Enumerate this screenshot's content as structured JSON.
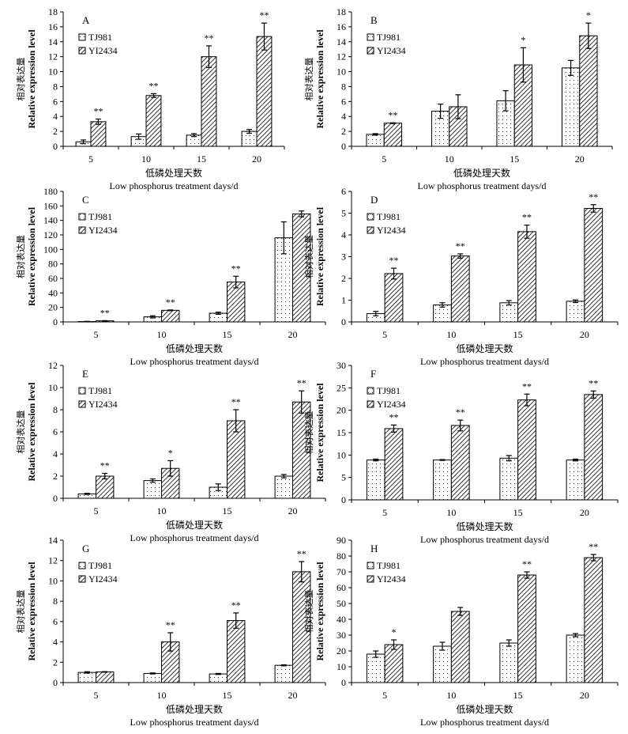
{
  "labels": {
    "ylabel_en": "Relative expression level",
    "ylabel_cn": "相对表达量",
    "xlabel_cn": "低磷处理天数",
    "xlabel_en": "Low phosphorus treatment days/d"
  },
  "legend": [
    "TJ981",
    "YI2434"
  ],
  "chart_data": [
    {
      "type": "bar",
      "panel": "A",
      "categories": [
        "5",
        "10",
        "15",
        "20"
      ],
      "ylim": [
        0,
        18
      ],
      "yticks": [
        0,
        2,
        4,
        6,
        8,
        10,
        12,
        14,
        16,
        18
      ],
      "legend_position": "top-left",
      "series": [
        {
          "name": "TJ981",
          "values": [
            0.6,
            1.3,
            1.5,
            2.0
          ],
          "errors": [
            0.25,
            0.35,
            0.2,
            0.25
          ]
        },
        {
          "name": "YI2434",
          "values": [
            3.3,
            6.8,
            12.0,
            14.7
          ],
          "errors": [
            0.35,
            0.25,
            1.45,
            1.8
          ]
        }
      ],
      "annotations": [
        "**",
        "**",
        "**",
        "**"
      ]
    },
    {
      "type": "bar",
      "panel": "B",
      "categories": [
        "5",
        "10",
        "15",
        "20"
      ],
      "ylim": [
        0,
        18
      ],
      "yticks": [
        0,
        2,
        4,
        6,
        8,
        10,
        12,
        14,
        16,
        18
      ],
      "legend_position": "top-left",
      "series": [
        {
          "name": "TJ981",
          "values": [
            1.6,
            4.7,
            6.1,
            10.5
          ],
          "errors": [
            0.1,
            0.95,
            1.35,
            1.0
          ]
        },
        {
          "name": "YI2434",
          "values": [
            3.1,
            5.3,
            10.9,
            14.8
          ],
          "errors": [
            0.05,
            1.6,
            2.3,
            1.7
          ]
        }
      ],
      "annotations": [
        "**",
        "",
        "*",
        "*"
      ]
    },
    {
      "type": "bar",
      "panel": "C",
      "categories": [
        "5",
        "10",
        "15",
        "20"
      ],
      "ylim": [
        0,
        180
      ],
      "yticks": [
        0,
        20,
        40,
        60,
        80,
        100,
        120,
        140,
        160,
        180
      ],
      "legend_position": "top-left",
      "series": [
        {
          "name": "TJ981",
          "values": [
            0.5,
            7,
            12,
            116
          ],
          "errors": [
            0.3,
            1.5,
            1.5,
            22
          ]
        },
        {
          "name": "YI2434",
          "values": [
            1.5,
            16,
            55,
            149
          ],
          "errors": [
            0.3,
            0.5,
            8,
            4
          ]
        }
      ],
      "annotations": [
        "**",
        "**",
        "**",
        ""
      ]
    },
    {
      "type": "bar",
      "panel": "D",
      "categories": [
        "5",
        "10",
        "15",
        "20"
      ],
      "ylim": [
        0,
        6
      ],
      "yticks": [
        0,
        1,
        2,
        3,
        4,
        5,
        6
      ],
      "legend_position": "top-left",
      "series": [
        {
          "name": "TJ981",
          "values": [
            0.38,
            0.78,
            0.88,
            0.95
          ],
          "errors": [
            0.1,
            0.1,
            0.1,
            0.06
          ]
        },
        {
          "name": "YI2434",
          "values": [
            2.22,
            3.03,
            4.15,
            5.22
          ],
          "errors": [
            0.25,
            0.1,
            0.3,
            0.17
          ]
        }
      ],
      "annotations": [
        "**",
        "**",
        "**",
        "**"
      ]
    },
    {
      "type": "bar",
      "panel": "E",
      "categories": [
        "5",
        "10",
        "15",
        "20"
      ],
      "ylim": [
        0,
        12
      ],
      "yticks": [
        0,
        2,
        4,
        6,
        8,
        10,
        12
      ],
      "legend_position": "top-left",
      "series": [
        {
          "name": "TJ981",
          "values": [
            0.4,
            1.6,
            1.0,
            2.0
          ],
          "errors": [
            0.05,
            0.15,
            0.3,
            0.15
          ]
        },
        {
          "name": "YI2434",
          "values": [
            2.0,
            2.7,
            7.0,
            8.7
          ],
          "errors": [
            0.25,
            0.7,
            1.0,
            1.0
          ]
        }
      ],
      "annotations": [
        "**",
        "*",
        "**",
        "**"
      ]
    },
    {
      "type": "bar",
      "panel": "F",
      "categories": [
        "5",
        "10",
        "15",
        "20"
      ],
      "ylim": [
        0,
        30
      ],
      "yticks": [
        0,
        5,
        10,
        15,
        20,
        25,
        30
      ],
      "legend_position": "top-left",
      "series": [
        {
          "name": "TJ981",
          "values": [
            8.9,
            8.9,
            9.3,
            8.9
          ],
          "errors": [
            0.2,
            0.1,
            0.6,
            0.2
          ]
        },
        {
          "name": "YI2434",
          "values": [
            15.9,
            16.6,
            22.3,
            23.5
          ],
          "errors": [
            0.8,
            1.2,
            1.3,
            0.8
          ]
        }
      ],
      "annotations": [
        "**",
        "**",
        "**",
        "**"
      ]
    },
    {
      "type": "bar",
      "panel": "G",
      "categories": [
        "5",
        "10",
        "15",
        "20"
      ],
      "ylim": [
        0,
        14
      ],
      "yticks": [
        0,
        2,
        4,
        6,
        8,
        10,
        12,
        14
      ],
      "legend_position": "top-left",
      "series": [
        {
          "name": "TJ981",
          "values": [
            1.0,
            0.9,
            0.85,
            1.7
          ],
          "errors": [
            0.07,
            0.05,
            0.05,
            0.05
          ]
        },
        {
          "name": "YI2434",
          "values": [
            1.05,
            4.0,
            6.1,
            10.9
          ],
          "errors": [
            0.03,
            0.9,
            0.75,
            1.0
          ]
        }
      ],
      "annotations": [
        "",
        "**",
        "**",
        "**"
      ]
    },
    {
      "type": "bar",
      "panel": "H",
      "categories": [
        "5",
        "10",
        "15",
        "20"
      ],
      "ylim": [
        0,
        90
      ],
      "yticks": [
        0,
        10,
        20,
        30,
        40,
        50,
        60,
        70,
        80,
        90
      ],
      "legend_position": "top-left",
      "series": [
        {
          "name": "TJ981",
          "values": [
            18,
            23,
            25,
            30
          ],
          "errors": [
            2,
            2.5,
            2,
            1
          ]
        },
        {
          "name": "YI2434",
          "values": [
            24,
            45,
            68,
            79
          ],
          "errors": [
            3,
            2.5,
            2,
            2
          ]
        }
      ],
      "annotations": [
        "*",
        "",
        "**",
        "**"
      ]
    }
  ]
}
